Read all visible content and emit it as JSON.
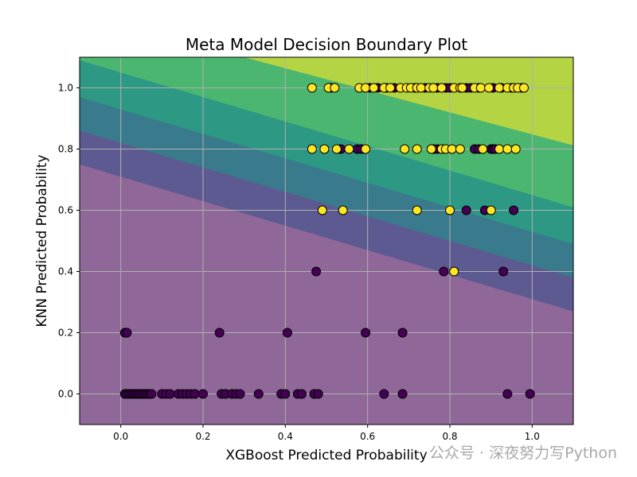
{
  "chart_data": {
    "type": "scatter",
    "title": "Meta Model Decision Boundary Plot",
    "xlabel": "XGBoost Predicted Probability",
    "ylabel": "KNN Predicted Probability",
    "xlim": [
      -0.1,
      1.1
    ],
    "ylim": [
      -0.1,
      1.1
    ],
    "xticks": [
      "0.0",
      "0.2",
      "0.4",
      "0.6",
      "0.8",
      "1.0"
    ],
    "yticks": [
      "0.0",
      "0.2",
      "0.4",
      "0.6",
      "0.8",
      "1.0"
    ],
    "grid": true,
    "legend": "none",
    "contour": {
      "description": "filled probability contours of the meta model",
      "levels": [
        {
          "color": "#440154",
          "a": -0.1,
          "b": 0.59,
          "slope": -0.4
        },
        {
          "color": "#3b528b",
          "a": -0.1,
          "b": 0.75,
          "slope": -0.4
        },
        {
          "color": "#21918c",
          "a": -0.1,
          "b": 0.86,
          "slope": -0.4
        },
        {
          "color": "#27ad81",
          "a": -0.1,
          "b": 0.97,
          "slope": -0.4
        },
        {
          "color": "#5ec962",
          "a": -0.1,
          "b": 1.09,
          "slope": -0.4
        },
        {
          "color": "#fde725",
          "a": 0.3,
          "b": 1.1,
          "slope": -0.36
        }
      ],
      "opacity": 0.6
    },
    "classes": [
      {
        "label": "0",
        "color": "#440154"
      },
      {
        "label": "1",
        "color": "#fde725"
      }
    ],
    "points_class0": [
      [
        0.01,
        0
      ],
      [
        0.015,
        0
      ],
      [
        0.02,
        0
      ],
      [
        0.025,
        0
      ],
      [
        0.03,
        0
      ],
      [
        0.035,
        0
      ],
      [
        0.04,
        0
      ],
      [
        0.045,
        0
      ],
      [
        0.05,
        0
      ],
      [
        0.055,
        0
      ],
      [
        0.06,
        0
      ],
      [
        0.065,
        0
      ],
      [
        0.07,
        0
      ],
      [
        0.075,
        0
      ],
      [
        0.1,
        0
      ],
      [
        0.11,
        0
      ],
      [
        0.12,
        0
      ],
      [
        0.14,
        0
      ],
      [
        0.15,
        0
      ],
      [
        0.16,
        0
      ],
      [
        0.17,
        0
      ],
      [
        0.18,
        0
      ],
      [
        0.2,
        0
      ],
      [
        0.245,
        0
      ],
      [
        0.255,
        0
      ],
      [
        0.27,
        0
      ],
      [
        0.28,
        0
      ],
      [
        0.29,
        0
      ],
      [
        0.335,
        0
      ],
      [
        0.39,
        0
      ],
      [
        0.4,
        0
      ],
      [
        0.43,
        0
      ],
      [
        0.44,
        0
      ],
      [
        0.47,
        0
      ],
      [
        0.48,
        0
      ],
      [
        0.64,
        0
      ],
      [
        0.685,
        0
      ],
      [
        0.94,
        0
      ],
      [
        0.995,
        0
      ],
      [
        0.01,
        0.2
      ],
      [
        0.015,
        0.2
      ],
      [
        0.24,
        0.2
      ],
      [
        0.405,
        0.2
      ],
      [
        0.595,
        0.2
      ],
      [
        0.685,
        0.2
      ],
      [
        0.475,
        0.4
      ],
      [
        0.785,
        0.4
      ],
      [
        0.93,
        0.4
      ],
      [
        0.84,
        0.6
      ],
      [
        0.885,
        0.6
      ],
      [
        0.955,
        0.6
      ],
      [
        0.535,
        0.8
      ],
      [
        0.575,
        0.8
      ],
      [
        0.585,
        0.8
      ],
      [
        0.76,
        0.8
      ],
      [
        0.77,
        0.8
      ],
      [
        0.86,
        0.8
      ],
      [
        0.87,
        0.8
      ],
      [
        0.9,
        0.8
      ],
      [
        0.905,
        0.8
      ],
      [
        0.91,
        0.8
      ],
      [
        0.51,
        1.0
      ],
      [
        0.605,
        1.0
      ],
      [
        0.625,
        1.0
      ],
      [
        0.645,
        1.0
      ],
      [
        0.665,
        1.0
      ],
      [
        0.715,
        1.0
      ],
      [
        0.74,
        1.0
      ],
      [
        0.77,
        1.0
      ],
      [
        0.79,
        1.0
      ],
      [
        0.8,
        1.0
      ],
      [
        0.84,
        1.0
      ],
      [
        0.85,
        1.0
      ],
      [
        0.87,
        1.0
      ],
      [
        0.905,
        1.0
      ],
      [
        0.925,
        1.0
      ],
      [
        0.95,
        1.0
      ],
      [
        0.975,
        1.0
      ]
    ],
    "points_class1": [
      [
        0.465,
        1.0
      ],
      [
        0.505,
        1.0
      ],
      [
        0.52,
        1.0
      ],
      [
        0.58,
        1.0
      ],
      [
        0.595,
        1.0
      ],
      [
        0.615,
        1.0
      ],
      [
        0.64,
        1.0
      ],
      [
        0.655,
        1.0
      ],
      [
        0.68,
        1.0
      ],
      [
        0.695,
        1.0
      ],
      [
        0.705,
        1.0
      ],
      [
        0.72,
        1.0
      ],
      [
        0.73,
        1.0
      ],
      [
        0.75,
        1.0
      ],
      [
        0.76,
        1.0
      ],
      [
        0.78,
        1.0
      ],
      [
        0.81,
        1.0
      ],
      [
        0.825,
        1.0
      ],
      [
        0.83,
        1.0
      ],
      [
        0.86,
        1.0
      ],
      [
        0.875,
        1.0
      ],
      [
        0.895,
        1.0
      ],
      [
        0.92,
        1.0
      ],
      [
        0.94,
        1.0
      ],
      [
        0.955,
        1.0
      ],
      [
        0.965,
        1.0
      ],
      [
        0.98,
        1.0
      ],
      [
        0.465,
        0.8
      ],
      [
        0.495,
        0.8
      ],
      [
        0.525,
        0.8
      ],
      [
        0.555,
        0.8
      ],
      [
        0.595,
        0.8
      ],
      [
        0.69,
        0.8
      ],
      [
        0.72,
        0.8
      ],
      [
        0.755,
        0.8
      ],
      [
        0.78,
        0.8
      ],
      [
        0.79,
        0.8
      ],
      [
        0.805,
        0.8
      ],
      [
        0.825,
        0.8
      ],
      [
        0.88,
        0.8
      ],
      [
        0.92,
        0.8
      ],
      [
        0.94,
        0.8
      ],
      [
        0.96,
        0.8
      ],
      [
        0.49,
        0.6
      ],
      [
        0.54,
        0.6
      ],
      [
        0.72,
        0.6
      ],
      [
        0.8,
        0.6
      ],
      [
        0.9,
        0.6
      ],
      [
        0.81,
        0.4
      ]
    ]
  },
  "watermark": "公众号 · 深夜努力写Python"
}
